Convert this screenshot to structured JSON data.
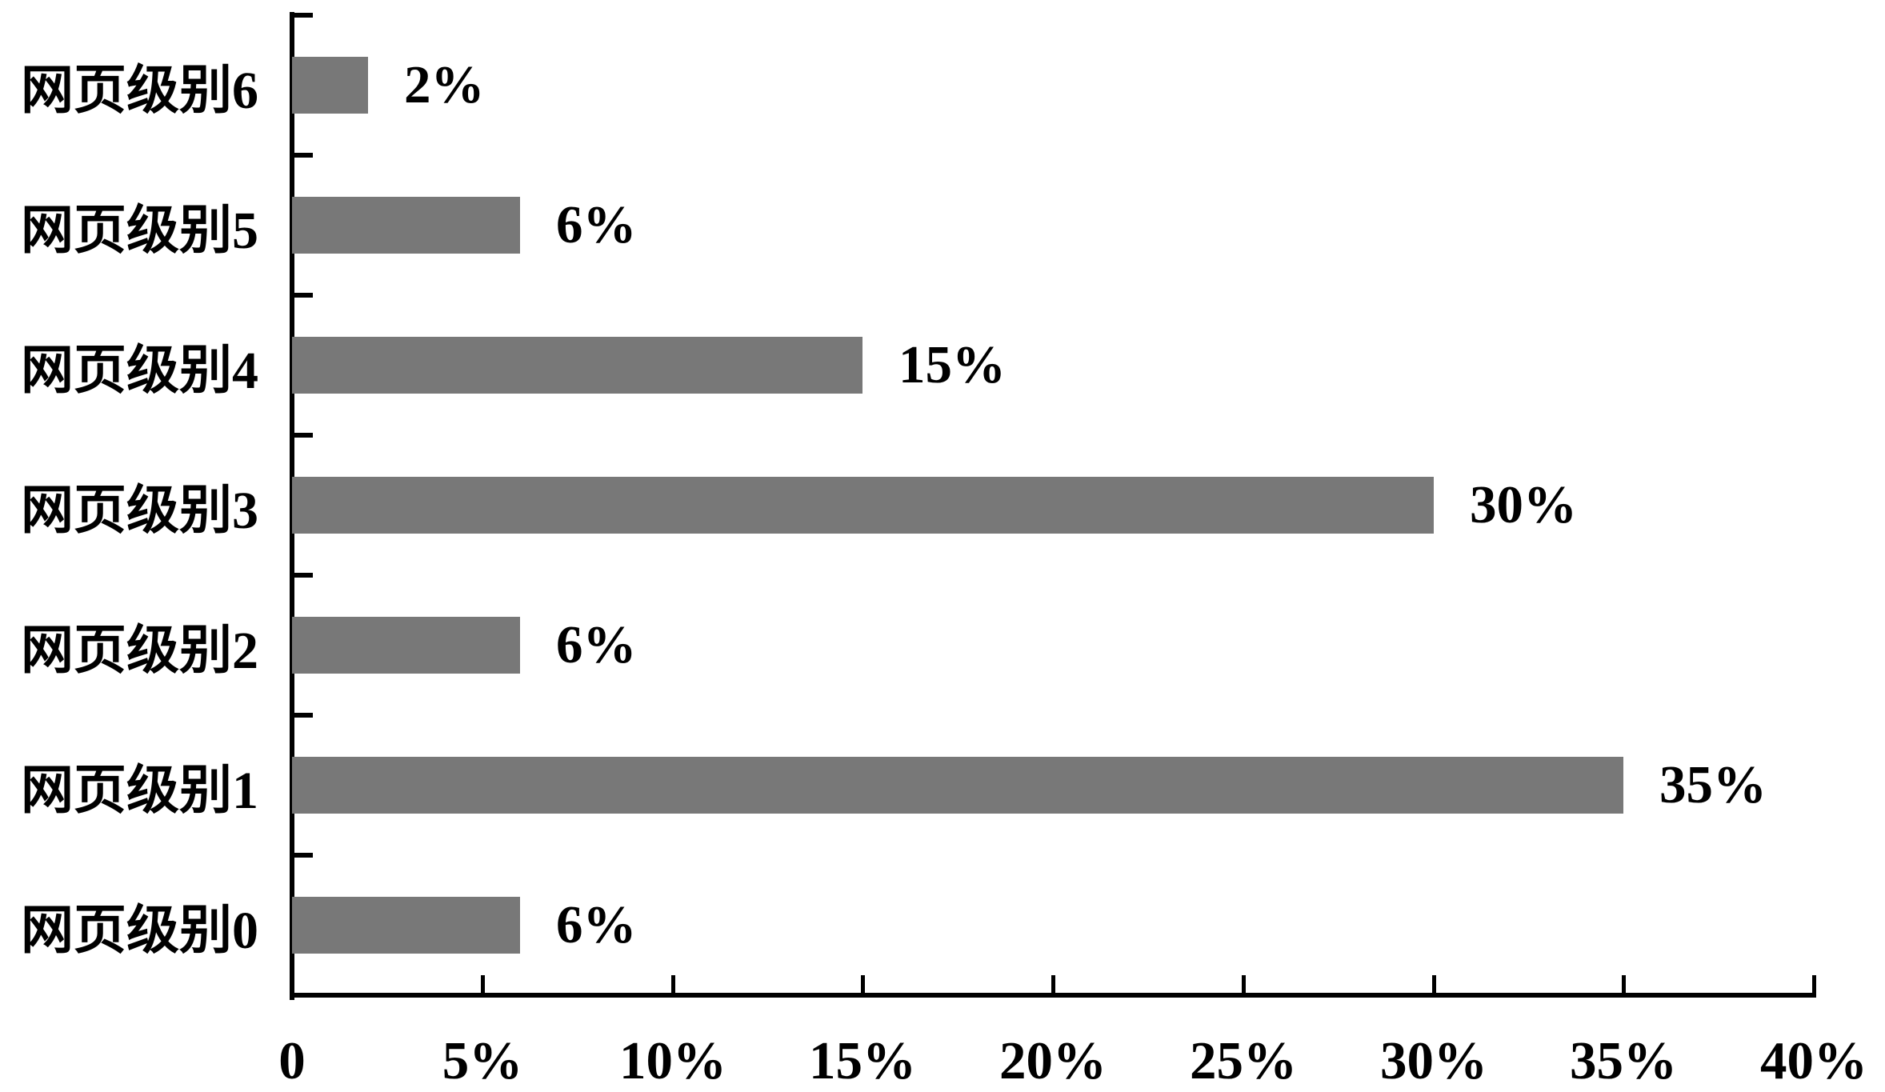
{
  "chart_data": {
    "type": "bar",
    "orientation": "horizontal",
    "title": "",
    "xlabel": "",
    "ylabel": "",
    "categories": [
      "网页级别6",
      "网页级别5",
      "网页级别4",
      "网页级别3",
      "网页级别2",
      "网页级别1",
      "网页级别0"
    ],
    "values": [
      2,
      6,
      15,
      30,
      6,
      35,
      6
    ],
    "value_labels": [
      "2%",
      "6%",
      "15%",
      "30%",
      "6%",
      "35%",
      "6%"
    ],
    "x_tick_labels": [
      "0",
      "5%",
      "10%",
      "15%",
      "20%",
      "25%",
      "30%",
      "35%",
      "40%"
    ],
    "x_tick_values": [
      0,
      5,
      10,
      15,
      20,
      25,
      30,
      35,
      40
    ],
    "xlim": [
      0,
      40
    ],
    "grid": false,
    "legend": "none",
    "colors": {
      "bar": "#787878",
      "axis": "#000000",
      "text": "#000000",
      "background": "#ffffff"
    }
  }
}
